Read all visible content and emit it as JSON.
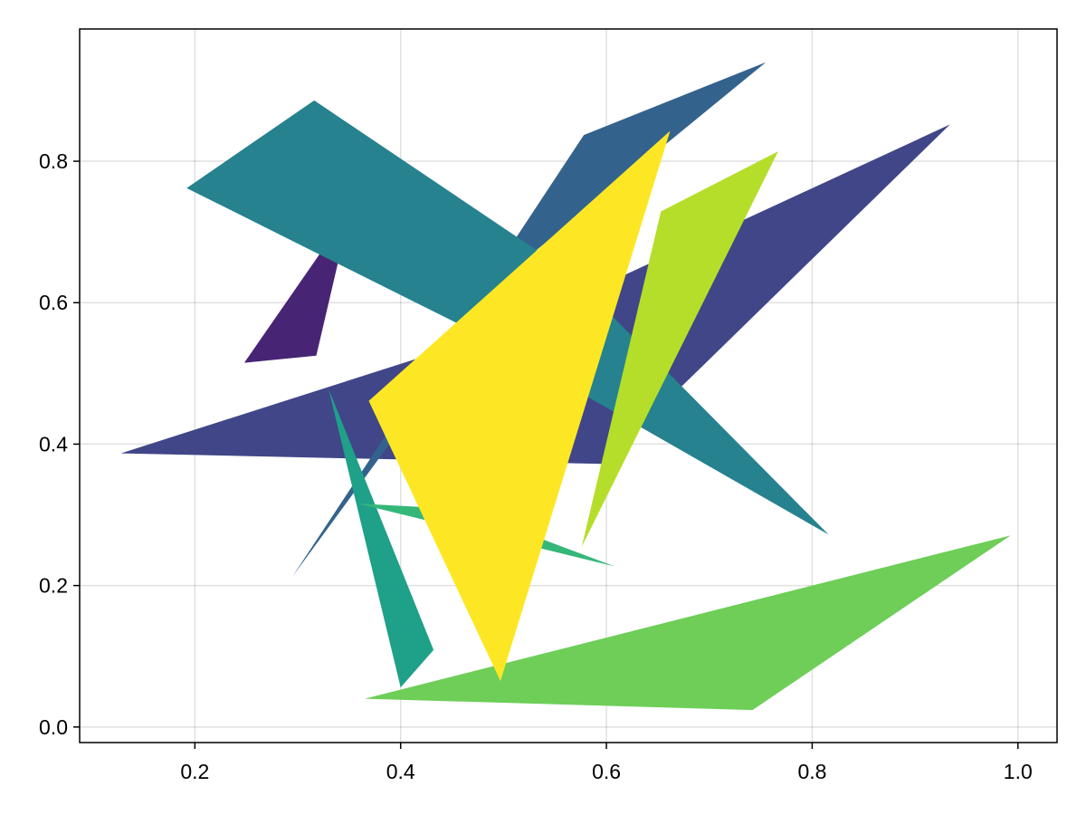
{
  "chart_data": {
    "type": "polygon",
    "xlim": [
      0.088,
      1.038
    ],
    "ylim": [
      -0.022,
      0.987
    ],
    "x_ticks": [
      {
        "value": 0.2,
        "label": "0.2"
      },
      {
        "value": 0.4,
        "label": "0.4"
      },
      {
        "value": 0.6,
        "label": "0.6"
      },
      {
        "value": 0.8,
        "label": "0.8"
      },
      {
        "value": 1.0,
        "label": "1.0"
      }
    ],
    "y_ticks": [
      {
        "value": 0.0,
        "label": "0.0"
      },
      {
        "value": 0.2,
        "label": "0.2"
      },
      {
        "value": 0.4,
        "label": "0.4"
      },
      {
        "value": 0.6,
        "label": "0.6"
      },
      {
        "value": 0.8,
        "label": "0.8"
      }
    ],
    "grid": true,
    "legend": "none",
    "polygons": [
      {
        "id": "purple",
        "color": "#482475",
        "points": [
          [
            0.248,
            0.515
          ],
          [
            0.318,
            0.525
          ],
          [
            0.342,
            0.675
          ],
          [
            0.329,
            0.685
          ]
        ]
      },
      {
        "id": "indigo",
        "color": "#404688",
        "points": [
          [
            0.128,
            0.387
          ],
          [
            0.596,
            0.372
          ],
          [
            0.934,
            0.852
          ],
          [
            0.5,
            0.56
          ]
        ]
      },
      {
        "id": "steel-blue",
        "color": "#33638d",
        "points": [
          [
            0.295,
            0.213
          ],
          [
            0.578,
            0.837
          ],
          [
            0.755,
            0.94
          ],
          [
            0.52,
            0.66
          ]
        ]
      },
      {
        "id": "teal",
        "color": "#26828e",
        "points": [
          [
            0.192,
            0.762
          ],
          [
            0.316,
            0.886
          ],
          [
            0.562,
            0.645
          ],
          [
            0.816,
            0.272
          ],
          [
            0.47,
            0.56
          ]
        ]
      },
      {
        "id": "green-teal",
        "color": "#1fa088",
        "points": [
          [
            0.33,
            0.478
          ],
          [
            0.4,
            0.056
          ],
          [
            0.432,
            0.109
          ]
        ]
      },
      {
        "id": "green",
        "color": "#35b779",
        "points": [
          [
            0.358,
            0.316
          ],
          [
            0.608,
            0.227
          ],
          [
            0.46,
            0.308
          ]
        ]
      },
      {
        "id": "light-green",
        "color": "#6ece58",
        "points": [
          [
            0.365,
            0.04
          ],
          [
            0.742,
            0.024
          ],
          [
            0.993,
            0.271
          ]
        ]
      },
      {
        "id": "yellow-green",
        "color": "#b5de2b",
        "points": [
          [
            0.576,
            0.255
          ],
          [
            0.653,
            0.729
          ],
          [
            0.767,
            0.814
          ]
        ]
      },
      {
        "id": "yellow",
        "color": "#fde725",
        "points": [
          [
            0.369,
            0.461
          ],
          [
            0.497,
            0.065
          ],
          [
            0.662,
            0.843
          ]
        ]
      }
    ]
  }
}
